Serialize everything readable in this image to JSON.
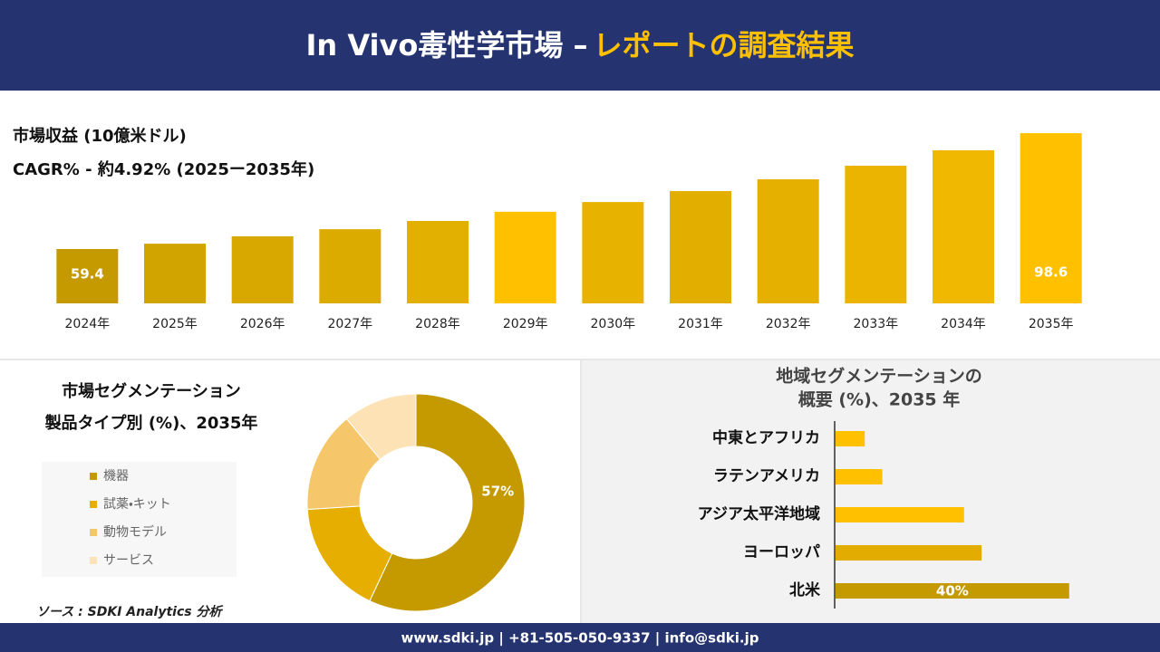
{
  "header": {
    "title": "In Vivo毒性学市場 –",
    "highlight": "レポートの調査結果"
  },
  "chart_data": [
    {
      "type": "bar",
      "orientation": "vertical",
      "title": "市場収益 (10億米ドル)",
      "subtitle": "CAGR% - 約4.92% (2025ー2035年)",
      "categories": [
        "2024年",
        "2025年",
        "2026年",
        "2027年",
        "2028年",
        "2029年",
        "2030年",
        "2031年",
        "2032年",
        "2033年",
        "2034年",
        "2035年"
      ],
      "values": [
        59.4,
        61.2,
        63.7,
        66.1,
        68.9,
        72.0,
        75.3,
        79.0,
        83.0,
        87.6,
        92.8,
        98.6
      ],
      "value_labels": [
        "59.4",
        null,
        null,
        null,
        null,
        null,
        null,
        null,
        null,
        null,
        null,
        "98.6"
      ],
      "colors": [
        "#c49a00",
        "#d2a400",
        "#d8a800",
        "#dcab00",
        "#e2b000",
        "#ffc000",
        "#e8b300",
        "#e2ae00",
        "#e6b000",
        "#ebb400",
        "#f0b800",
        "#ffc000"
      ],
      "ylim": [
        41,
        102.3
      ]
    },
    {
      "type": "donut",
      "title": [
        "市場セグメンテーション",
        "製品タイプ別 (%)、2035年"
      ],
      "categories": [
        "機器",
        "試薬・キット",
        "動物モデル",
        "サービス"
      ],
      "values": [
        57,
        17,
        15,
        11
      ],
      "value_labels": [
        "57%",
        null,
        null,
        null
      ],
      "colors": [
        "#c49a00",
        "#e6ae00",
        "#f6c66a",
        "#fde2b6"
      ]
    },
    {
      "type": "bar",
      "orientation": "horizontal",
      "title": [
        "地域セグメンテーションの",
        "概要 (%)、2035 年"
      ],
      "categories": [
        "中東とアフリカ",
        "ラテンアメリカ",
        "アジア太平洋地域",
        "ヨーロッパ",
        "北米"
      ],
      "values": [
        5,
        8,
        22,
        25,
        40
      ],
      "value_labels": [
        null,
        null,
        null,
        null,
        "40%"
      ],
      "colors": [
        "#ffc000",
        "#ffc000",
        "#ffc000",
        "#e3ad00",
        "#c49a00"
      ],
      "xlim": [
        0,
        45
      ]
    }
  ],
  "source": "ソース : SDKI Analytics 分析",
  "footer": "www.sdki.jp | +81-505-050-9337 | info@sdki.jp"
}
